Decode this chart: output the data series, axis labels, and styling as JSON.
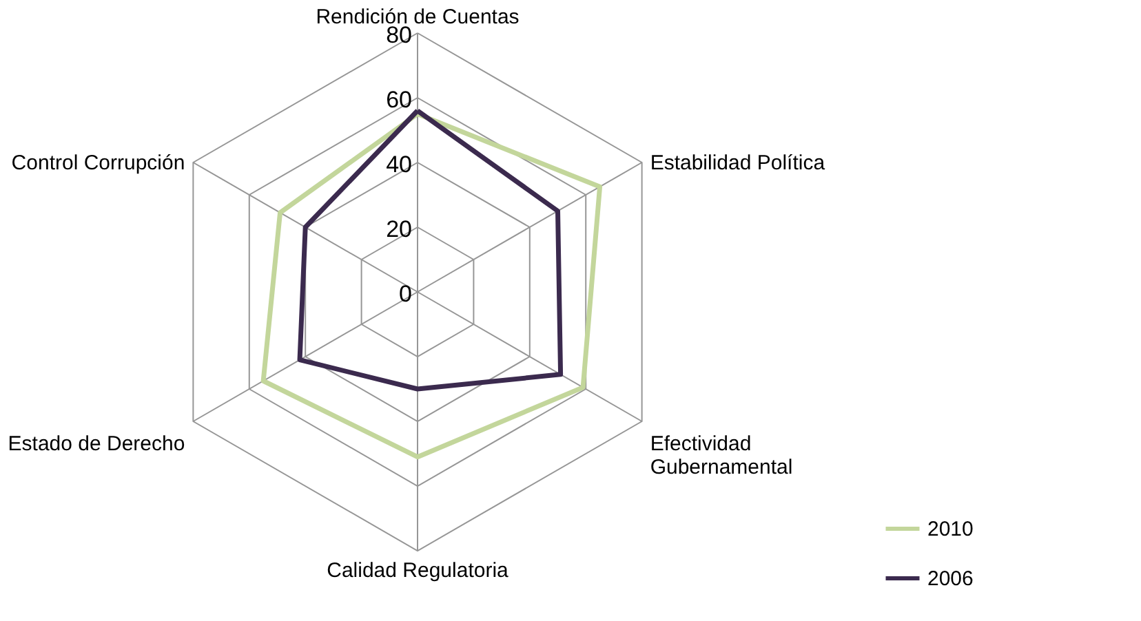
{
  "chart_data": {
    "type": "radar",
    "categories": [
      "Rendición de Cuentas",
      "Estabilidad Política",
      "Efectividad Gubernamental",
      "Calidad Regulatoria",
      "Estado de Derecho",
      "Control Corrupción"
    ],
    "series": [
      {
        "name": "2010",
        "color": "#c3d69b",
        "values": [
          55,
          65,
          59,
          51,
          55,
          49
        ]
      },
      {
        "name": "2006",
        "color": "#3b2a4e",
        "values": [
          56,
          50,
          51,
          30,
          42,
          40
        ]
      }
    ],
    "ylim": [
      0,
      80
    ],
    "yticks": [
      0,
      20,
      40,
      60,
      80
    ],
    "grid": true,
    "legend": "bottom right"
  }
}
